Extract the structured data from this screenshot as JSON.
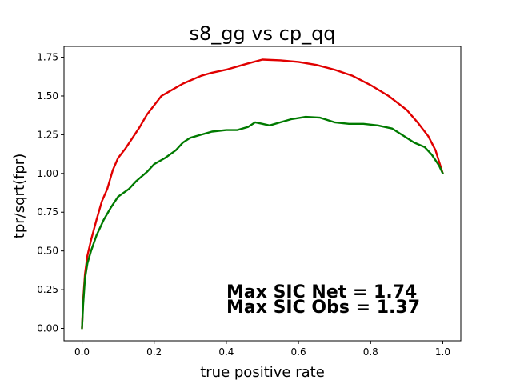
{
  "chart_data": {
    "type": "line",
    "title": "s8_gg vs cp_qq",
    "xlabel": "true positive rate",
    "ylabel": "tpr/sqrt(fpr)",
    "xlim": [
      -0.05,
      1.05
    ],
    "ylim": [
      -0.08,
      1.82
    ],
    "xticks": [
      0.0,
      0.2,
      0.4,
      0.6,
      0.8,
      1.0
    ],
    "xtick_labels": [
      "0.0",
      "0.2",
      "0.4",
      "0.6",
      "0.8",
      "1.0"
    ],
    "yticks": [
      0.0,
      0.25,
      0.5,
      0.75,
      1.0,
      1.25,
      1.5,
      1.75
    ],
    "ytick_labels": [
      "0.00",
      "0.25",
      "0.50",
      "0.75",
      "1.00",
      "1.25",
      "1.50",
      "1.75"
    ],
    "grid": false,
    "legend": "none",
    "series": [
      {
        "color": "#e00000",
        "points": [
          [
            0.0,
            0.0
          ],
          [
            0.003,
            0.18
          ],
          [
            0.008,
            0.35
          ],
          [
            0.015,
            0.47
          ],
          [
            0.025,
            0.57
          ],
          [
            0.04,
            0.7
          ],
          [
            0.055,
            0.82
          ],
          [
            0.07,
            0.9
          ],
          [
            0.085,
            1.02
          ],
          [
            0.1,
            1.1
          ],
          [
            0.12,
            1.16
          ],
          [
            0.14,
            1.23
          ],
          [
            0.16,
            1.3
          ],
          [
            0.18,
            1.38
          ],
          [
            0.2,
            1.44
          ],
          [
            0.22,
            1.5
          ],
          [
            0.25,
            1.54
          ],
          [
            0.28,
            1.58
          ],
          [
            0.3,
            1.6
          ],
          [
            0.33,
            1.63
          ],
          [
            0.36,
            1.65
          ],
          [
            0.4,
            1.67
          ],
          [
            0.43,
            1.69
          ],
          [
            0.46,
            1.71
          ],
          [
            0.5,
            1.735
          ],
          [
            0.55,
            1.73
          ],
          [
            0.6,
            1.72
          ],
          [
            0.65,
            1.7
          ],
          [
            0.7,
            1.67
          ],
          [
            0.75,
            1.63
          ],
          [
            0.8,
            1.57
          ],
          [
            0.85,
            1.5
          ],
          [
            0.9,
            1.41
          ],
          [
            0.93,
            1.33
          ],
          [
            0.96,
            1.24
          ],
          [
            0.98,
            1.15
          ],
          [
            1.0,
            1.0
          ]
        ]
      },
      {
        "color": "#007a00",
        "points": [
          [
            0.0,
            0.0
          ],
          [
            0.003,
            0.15
          ],
          [
            0.008,
            0.32
          ],
          [
            0.015,
            0.42
          ],
          [
            0.025,
            0.5
          ],
          [
            0.04,
            0.6
          ],
          [
            0.06,
            0.7
          ],
          [
            0.08,
            0.78
          ],
          [
            0.1,
            0.85
          ],
          [
            0.13,
            0.9
          ],
          [
            0.15,
            0.95
          ],
          [
            0.18,
            1.01
          ],
          [
            0.2,
            1.06
          ],
          [
            0.23,
            1.1
          ],
          [
            0.26,
            1.15
          ],
          [
            0.28,
            1.2
          ],
          [
            0.3,
            1.23
          ],
          [
            0.33,
            1.25
          ],
          [
            0.36,
            1.27
          ],
          [
            0.4,
            1.28
          ],
          [
            0.43,
            1.28
          ],
          [
            0.46,
            1.3
          ],
          [
            0.48,
            1.33
          ],
          [
            0.5,
            1.32
          ],
          [
            0.52,
            1.31
          ],
          [
            0.55,
            1.33
          ],
          [
            0.58,
            1.35
          ],
          [
            0.62,
            1.365
          ],
          [
            0.66,
            1.36
          ],
          [
            0.7,
            1.33
          ],
          [
            0.74,
            1.32
          ],
          [
            0.78,
            1.32
          ],
          [
            0.82,
            1.31
          ],
          [
            0.86,
            1.29
          ],
          [
            0.88,
            1.26
          ],
          [
            0.9,
            1.23
          ],
          [
            0.92,
            1.2
          ],
          [
            0.95,
            1.17
          ],
          [
            0.97,
            1.12
          ],
          [
            0.99,
            1.05
          ],
          [
            1.0,
            1.0
          ]
        ]
      }
    ],
    "annotations": [
      "Max SIC Net = 1.74",
      "Max SIC Obs = 1.37"
    ]
  }
}
